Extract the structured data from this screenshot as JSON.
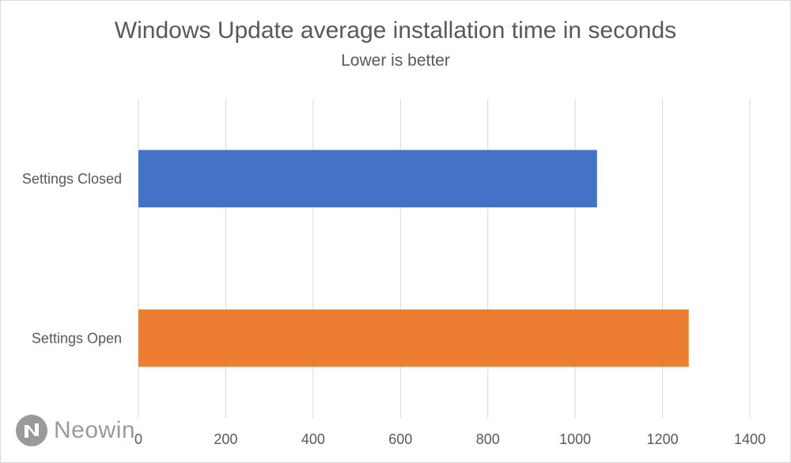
{
  "chart_data": {
    "type": "bar",
    "orientation": "horizontal",
    "title": "Windows Update average installation time in seconds",
    "subtitle": "Lower is better",
    "categories": [
      "Settings Closed",
      "Settings Open"
    ],
    "values": [
      1050,
      1260
    ],
    "bar_colors": [
      "#4472c4",
      "#ed7d31"
    ],
    "xlim": [
      0,
      1400
    ],
    "xticks": [
      0,
      200,
      400,
      600,
      800,
      1000,
      1200,
      1400
    ],
    "grid": true,
    "legend": "none"
  },
  "watermark": {
    "text": "Neowin",
    "icon": "neowin-logo-icon"
  },
  "colors": {
    "text": "#595959",
    "grid": "#d9d9d9",
    "watermark": "#9a9a9a"
  }
}
